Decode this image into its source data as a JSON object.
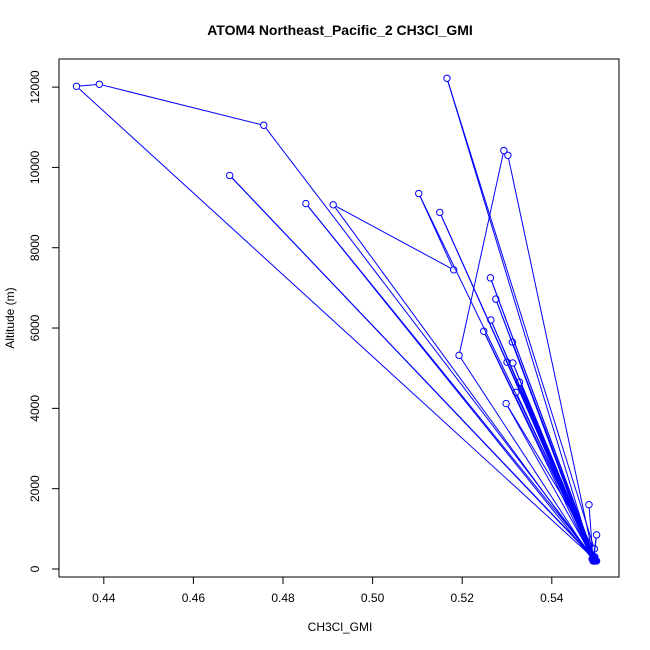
{
  "chart_data": {
    "type": "line",
    "title": "ATOM4 Northeast_Pacific_2 CH3Cl_GMI",
    "xlabel": "CH3Cl_GMI",
    "ylabel": "Altitude (m)",
    "xlim": [
      0.43,
      0.555
    ],
    "ylim": [
      -200,
      12700
    ],
    "x_ticks": [
      0.44,
      0.46,
      0.48,
      0.5,
      0.52,
      0.54
    ],
    "x_tick_labels": [
      "0.44",
      "0.46",
      "0.48",
      "0.50",
      "0.52",
      "0.54"
    ],
    "y_ticks": [
      0,
      2000,
      4000,
      6000,
      8000,
      10000,
      12000
    ],
    "y_tick_labels": [
      "0",
      "2000",
      "4000",
      "6000",
      "8000",
      "10000",
      "12000"
    ],
    "grid": false,
    "legend": "none",
    "marker": "open-circle",
    "color": "#0000ff",
    "series": [
      {
        "x": [
          0.55,
          0.4339,
          0.439,
          0.4757,
          0.5495,
          0.4681,
          0.5492,
          0.4851,
          0.5494,
          0.4912,
          0.5181,
          0.5103,
          0.5496,
          0.515,
          0.5498,
          0.5263,
          0.5495,
          0.5264,
          0.5492,
          0.5275,
          0.5497,
          0.5248,
          0.549,
          0.53,
          0.5493,
          0.5193,
          0.5293,
          0.5302,
          0.5494,
          0.5312,
          0.5492,
          0.5328,
          0.5495,
          0.532,
          0.5496,
          0.5313,
          0.5493,
          0.5298,
          0.5495,
          0.5166,
          0.5493,
          0.55,
          0.5492,
          0.5483
        ],
        "y": [
          200,
          12020,
          12070,
          11050,
          250,
          9800,
          300,
          9100,
          200,
          9070,
          7450,
          9350,
          300,
          8880,
          200,
          7250,
          300,
          6200,
          250,
          6720,
          200,
          5920,
          250,
          5150,
          200,
          5320,
          10420,
          10300,
          250,
          5650,
          200,
          4650,
          250,
          4400,
          200,
          5130,
          250,
          4120,
          500,
          12220,
          200,
          850,
          250,
          1600
        ]
      }
    ]
  }
}
